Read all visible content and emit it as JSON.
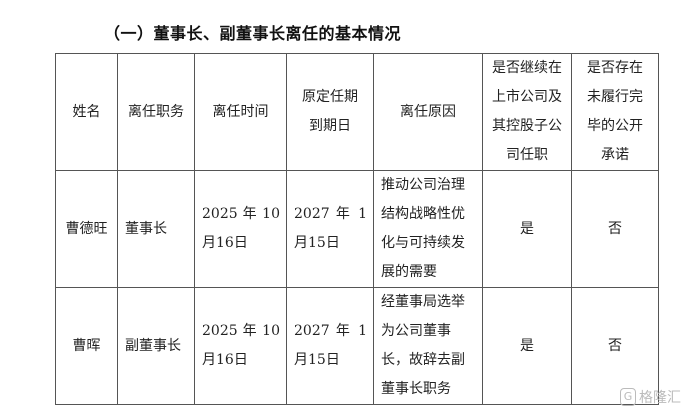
{
  "title": "（一）董事长、副董事长离任的基本情况",
  "table": {
    "headers": [
      [
        "姓名"
      ],
      [
        "离任职务"
      ],
      [
        "离任时间"
      ],
      [
        "原定任期",
        "到期日"
      ],
      [
        "离任原因"
      ],
      [
        "是否继续在",
        "上市公司及",
        "其控股子公",
        "司任职"
      ],
      [
        "是否存在",
        "未履行完",
        "毕的公开",
        "承诺"
      ]
    ],
    "rows": [
      {
        "name": "曹德旺",
        "position": "董事长",
        "leave_date": [
          "2025 年 10",
          "月16日"
        ],
        "term_end": [
          "2027 年 1",
          "月15日"
        ],
        "reason": [
          "推动公司治理",
          "结构战略性优",
          "化与可持续发",
          "展的需要"
        ],
        "continue_role": "是",
        "unfulfilled": "否"
      },
      {
        "name": "曹晖",
        "position": "副董事长",
        "leave_date": [
          "2025 年 10",
          "月16日"
        ],
        "term_end": [
          "2027 年 1",
          "月15日"
        ],
        "reason": [
          "经董事局选举",
          "为公司董事",
          "长，故辞去副",
          "董事长职务"
        ],
        "continue_role": "是",
        "unfulfilled": "否"
      }
    ]
  },
  "watermark": {
    "icon": "G",
    "text": "格隆汇"
  }
}
